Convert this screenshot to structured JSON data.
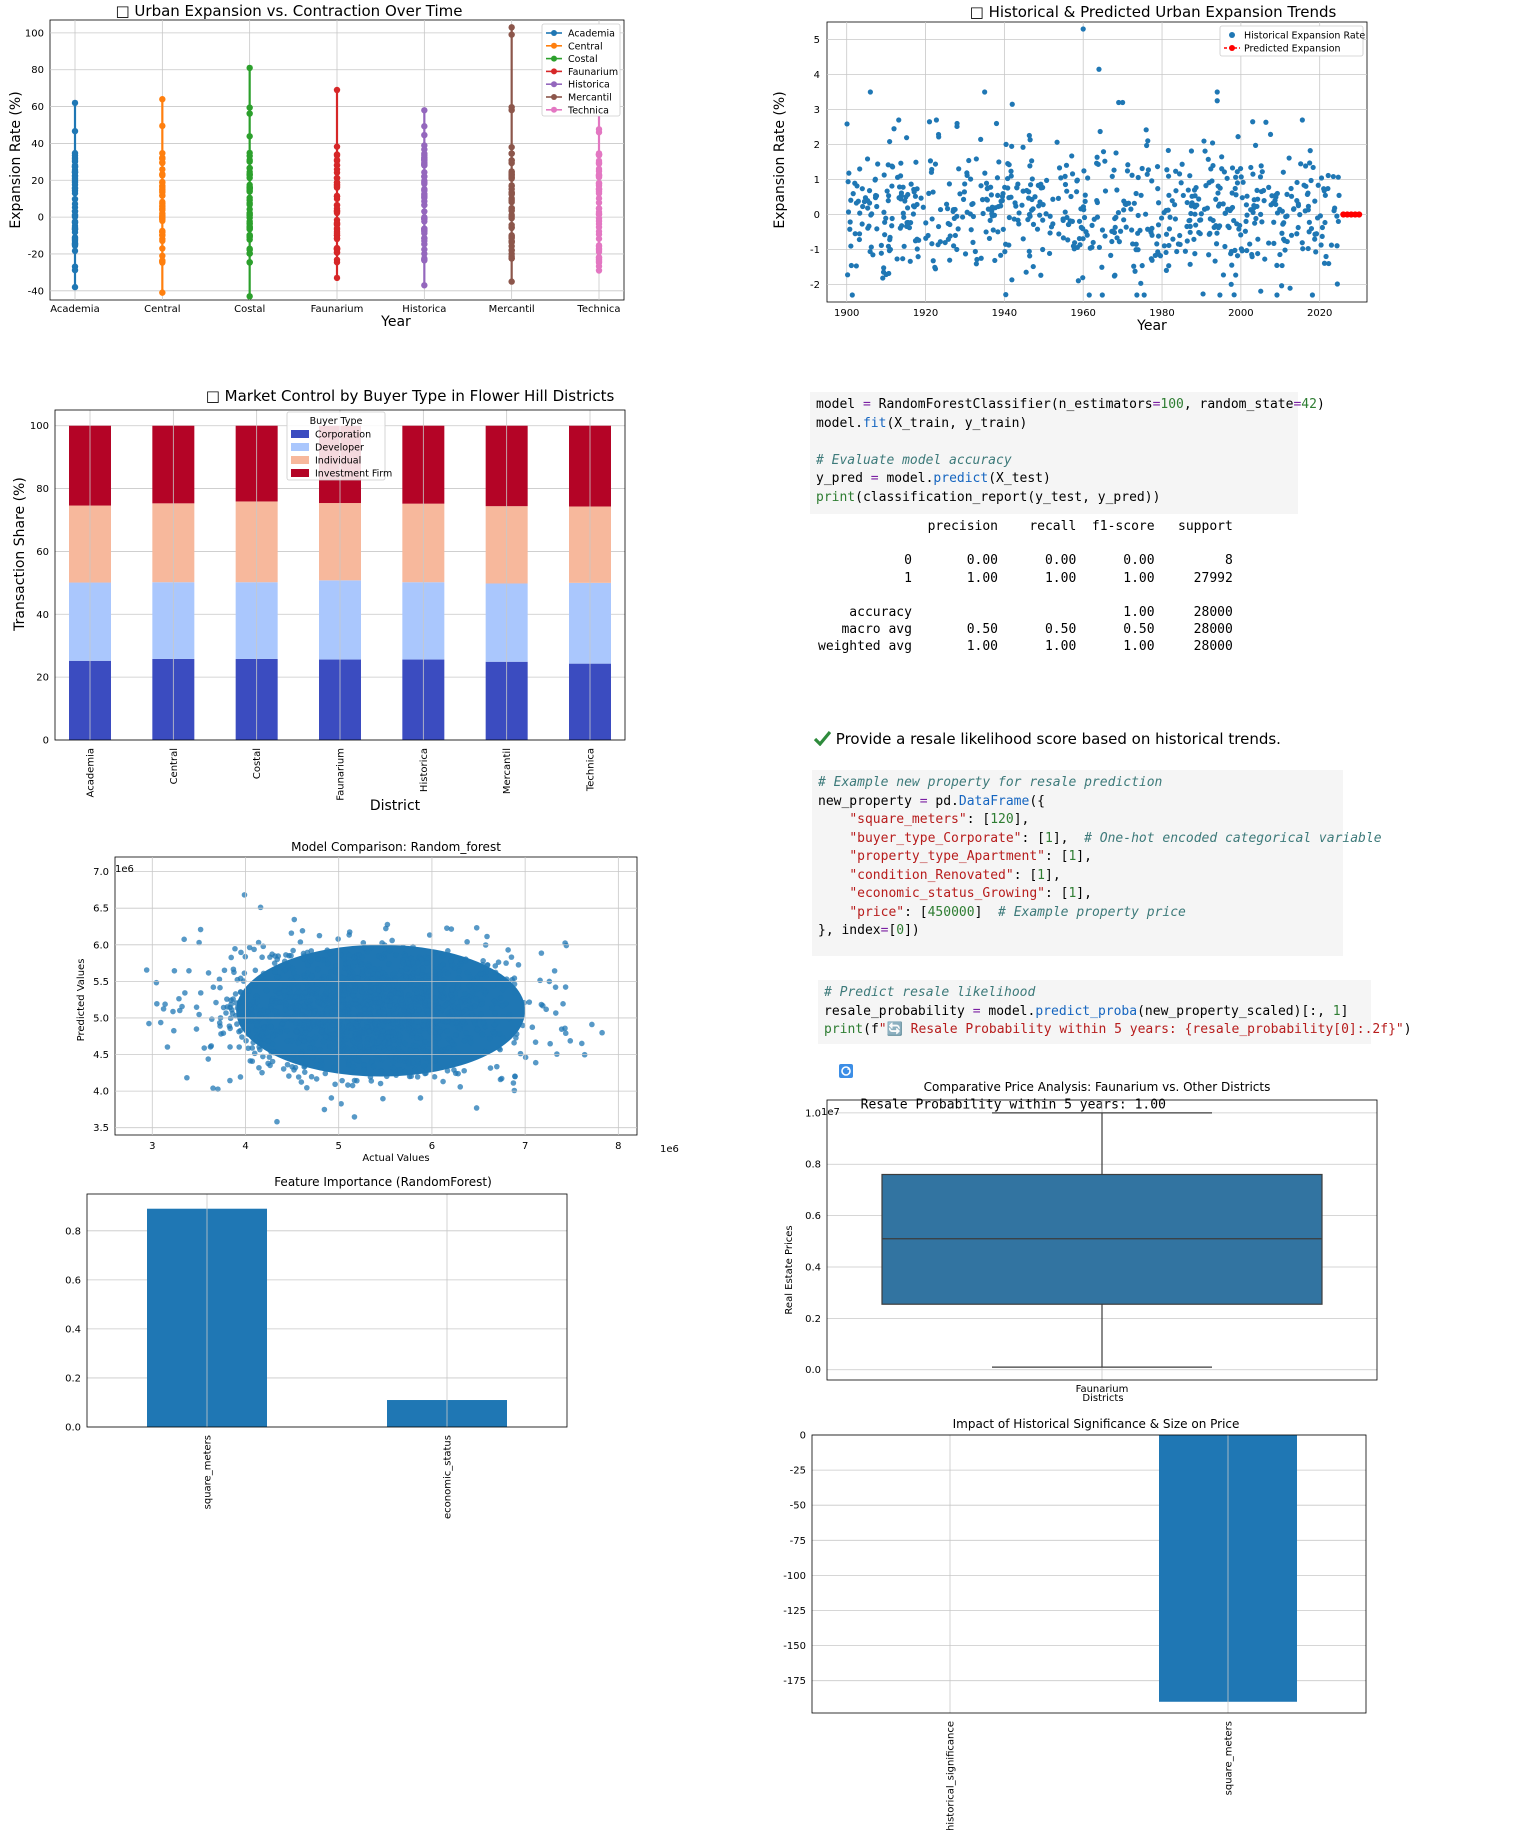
{
  "panels": {
    "urban": {
      "title": "□ Urban Expansion vs. Contraction Over Time",
      "xlabel": "Year",
      "ylabel": "Expansion Rate (%)"
    },
    "hist": {
      "title": "□ Historical & Predicted Urban Expansion Trends",
      "xlabel": "Year",
      "ylabel": "Expansion Rate (%)"
    },
    "market": {
      "title": "□ Market Control by Buyer Type in Flower Hill Districts",
      "xlabel": "District",
      "ylabel": "Transaction Share (%)",
      "legend_title": "Buyer Type"
    },
    "model_cmp": {
      "title": "Model Comparison: Random_forest",
      "xlabel": "Actual Values",
      "ylabel": "Predicted Values",
      "x_offset": "1e6",
      "y_offset": "1e6"
    },
    "feat_imp": {
      "title": "Feature Importance (RandomForest)"
    },
    "boxplot": {
      "title": "Comparative Price Analysis: Faunarium vs. Other Districts",
      "xlabel": "Districts",
      "ylabel": "Real Estate Prices",
      "y_offset": "1e7"
    },
    "impact": {
      "title": "Impact of Historical Significance & Size on Price"
    }
  },
  "code": {
    "cell1": [
      "model = RandomForestClassifier(n_estimators=100, random_state=42)",
      "model.fit(X_train, y_train)",
      "",
      "# Evaluate model accuracy",
      "y_pred = model.predict(X_test)",
      "print(classification_report(y_test, y_pred))"
    ],
    "report": [
      "              precision    recall  f1-score   support",
      "",
      "           0       0.00      0.00      0.00         8",
      "           1       1.00      1.00      1.00     27992",
      "",
      "    accuracy                           1.00     28000",
      "   macro avg       0.50      0.50      0.50     28000",
      "weighted avg       1.00      1.00      1.00     28000"
    ],
    "markdown_check": "Provide a resale likelihood score based on historical trends.",
    "cell2": [
      "# Example new property for resale prediction",
      "new_property = pd.DataFrame({",
      "    \"square_meters\": [120],",
      "    \"buyer_type_Corporate\": [1],  # One-hot encoded categorical variable",
      "    \"property_type_Apartment\": [1],",
      "    \"condition_Renovated\": [1],",
      "    \"economic_status_Growing\": [1],",
      "    \"price\": [450000]  # Example property price",
      "}, index=[0])"
    ],
    "cell3": [
      "# Predict resale likelihood",
      "resale_probability = model.predict_proba(new_property_scaled)[:, 1]",
      "print(f\"🔄 Resale Probability within 5 years: {resale_probability[0]:.2f}\")"
    ],
    "output3": "Resale Probability within 5 years: 1.00"
  },
  "chart_data": [
    {
      "id": "urban",
      "type": "line",
      "title": "□ Urban Expansion vs. Contraction Over Time",
      "xlabel": "Year",
      "ylabel": "Expansion Rate (%)",
      "categories": [
        "Academia",
        "Central",
        "Costal",
        "Faunarium",
        "Historica",
        "Mercantil",
        "Technica"
      ],
      "ylim": [
        -45,
        107
      ],
      "yticks": [
        -40,
        -20,
        0,
        20,
        40,
        60,
        80,
        100
      ],
      "series": [
        {
          "name": "Academia",
          "color": "#1f77b4",
          "min": -38,
          "max": 62
        },
        {
          "name": "Central",
          "color": "#ff7f0e",
          "min": -41,
          "max": 64
        },
        {
          "name": "Costal",
          "color": "#2ca02c",
          "min": -43,
          "max": 81
        },
        {
          "name": "Faunarium",
          "color": "#d62728",
          "min": -33,
          "max": 69
        },
        {
          "name": "Historica",
          "color": "#9467bd",
          "min": -37,
          "max": 58
        },
        {
          "name": "Mercantil",
          "color": "#8c564b",
          "min": -35,
          "max": 103
        },
        {
          "name": "Technica",
          "color": "#e377c2",
          "min": -29,
          "max": 60
        }
      ],
      "legend": "top-right",
      "grid": true
    },
    {
      "id": "hist",
      "type": "scatter",
      "title": "□ Historical & Predicted Urban Expansion Trends",
      "xlabel": "Year",
      "ylabel": "Expansion Rate (%)",
      "xlim": [
        1895,
        2032
      ],
      "ylim": [
        -2.5,
        5.5
      ],
      "xticks": [
        1900,
        1920,
        1940,
        1960,
        1980,
        2000,
        2020
      ],
      "yticks": [
        -2,
        -1,
        0,
        1,
        2,
        3,
        4,
        5
      ],
      "series": [
        {
          "name": "Historical Expansion Rate",
          "color": "#1f77b4",
          "x_range": [
            1900,
            2025
          ],
          "spread": [
            -2.3,
            2.7
          ]
        },
        {
          "name": "Predicted Expansion",
          "color": "#ff0000",
          "x": [
            2026,
            2027,
            2028,
            2029,
            2030
          ],
          "y": [
            0,
            0,
            0,
            0,
            0
          ]
        }
      ],
      "outliers": [
        [
          1906,
          3.5
        ],
        [
          1935,
          3.5
        ],
        [
          1942,
          3.15
        ],
        [
          1960,
          5.3
        ],
        [
          1964,
          4.15
        ],
        [
          1969,
          3.2
        ],
        [
          1970,
          3.2
        ],
        [
          1994,
          3.5
        ],
        [
          1994,
          3.25
        ],
        [
          2003,
          2.65
        ],
        [
          1912,
          2.45
        ],
        [
          1921,
          2.65
        ],
        [
          1928,
          2.6
        ],
        [
          1938,
          2.6
        ]
      ],
      "legend": "top-right",
      "grid": true
    },
    {
      "id": "market",
      "type": "bar",
      "stacked": true,
      "title": "□ Market Control by Buyer Type in Flower Hill Districts",
      "xlabel": "District",
      "ylabel": "Transaction Share (%)",
      "categories": [
        "Academia",
        "Central",
        "Costal",
        "Faunarium",
        "Historica",
        "Mercantil",
        "Technica"
      ],
      "ylim": [
        0,
        105
      ],
      "yticks": [
        0,
        20,
        40,
        60,
        80,
        100
      ],
      "series": [
        {
          "name": "Corporation",
          "color": "#3b4cc0",
          "values": [
            25.2,
            25.8,
            25.8,
            25.6,
            25.6,
            24.9,
            24.3
          ]
        },
        {
          "name": "Developer",
          "color": "#aac7fd",
          "values": [
            24.9,
            24.4,
            24.4,
            25.2,
            24.6,
            24.9,
            25.7
          ]
        },
        {
          "name": "Individual",
          "color": "#f7b89c",
          "values": [
            24.5,
            25.1,
            25.7,
            24.6,
            25.0,
            24.6,
            24.3
          ]
        },
        {
          "name": "Investment Firm",
          "color": "#b40426",
          "values": [
            25.4,
            24.7,
            24.1,
            24.6,
            24.8,
            25.6,
            25.7
          ]
        }
      ],
      "legend": "top-center",
      "legend_title": "Buyer Type",
      "grid": true
    },
    {
      "id": "model_cmp",
      "type": "scatter",
      "title": "Model Comparison: Random_forest",
      "xlabel": "Actual Values",
      "ylabel": "Predicted Values",
      "xlim": [
        2.6,
        8.2
      ],
      "ylim": [
        3.4,
        7.2
      ],
      "xticks": [
        3,
        4,
        5,
        6,
        7,
        8
      ],
      "yticks": [
        3.5,
        4.0,
        4.5,
        5.0,
        5.5,
        6.0,
        6.5,
        7.0
      ],
      "x_offset": "1e6",
      "y_offset": "1e6",
      "cluster": {
        "x_core": [
          3.9,
          7.0
        ],
        "y_core": [
          4.2,
          6.0
        ],
        "x_outer": [
          2.75,
          7.95
        ],
        "y_outer": [
          3.55,
          7.05
        ]
      },
      "color": "#1f77b4",
      "grid": true
    },
    {
      "id": "feat_imp",
      "type": "bar",
      "title": "Feature Importance (RandomForest)",
      "categories": [
        "square_meters",
        "economic_status"
      ],
      "values": [
        0.89,
        0.11
      ],
      "ylim": [
        0,
        0.95
      ],
      "yticks": [
        0.0,
        0.2,
        0.4,
        0.6,
        0.8
      ],
      "color": "#1f77b4",
      "grid": true
    },
    {
      "id": "boxplot",
      "type": "box",
      "title": "Comparative Price Analysis: Faunarium vs. Other Districts",
      "xlabel": "Districts",
      "ylabel": "Real Estate Prices",
      "categories": [
        "Faunarium"
      ],
      "stats": {
        "min": 0.01,
        "q1": 0.255,
        "median": 0.51,
        "q3": 0.76,
        "max": 1.0
      },
      "ylim": [
        -0.04,
        1.05
      ],
      "yticks": [
        0.0,
        0.2,
        0.4,
        0.6,
        0.8,
        1.0
      ],
      "y_offset": "1e7",
      "color": "#3274a1",
      "grid": true
    },
    {
      "id": "impact",
      "type": "bar",
      "title": "Impact of Historical Significance & Size on Price",
      "categories": [
        "historical_significance",
        "square_meters"
      ],
      "values": [
        0,
        -190
      ],
      "ylim": [
        -198,
        0
      ],
      "yticks": [
        0,
        -25,
        -50,
        -75,
        -100,
        -125,
        -150,
        -175
      ],
      "color": "#1f77b4",
      "grid": true
    }
  ]
}
